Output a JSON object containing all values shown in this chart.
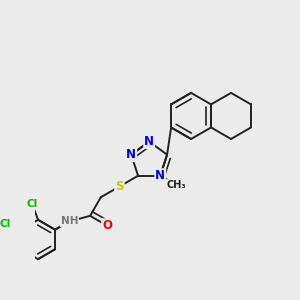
{
  "bg": "#ebebeb",
  "bond_color": "#222222",
  "lw": 1.4,
  "atom_colors": {
    "N": "#0000ee",
    "O": "#ee0000",
    "S": "#cccc00",
    "Cl": "#00bb00",
    "H": "#777777"
  },
  "fs": 8.5,
  "fs_small": 7.5
}
